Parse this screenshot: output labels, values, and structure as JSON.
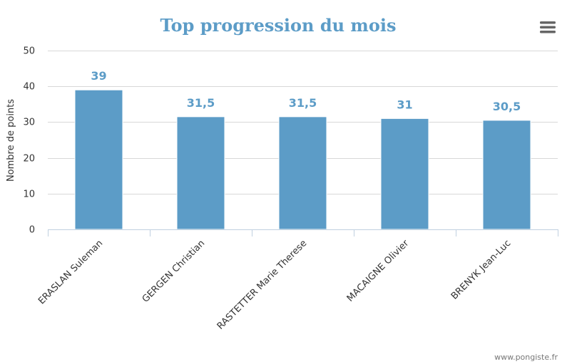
{
  "chart_data": {
    "type": "bar",
    "title": "Top progression du mois",
    "xlabel": "",
    "ylabel": "Nombre de points",
    "categories": [
      "ERASLAN Suleman",
      "GERGEN Christian",
      "RASTETTER Marie Therese",
      "MACAIGNE Olivier",
      "BRENYK Jean-Luc"
    ],
    "values": [
      39,
      31.5,
      31.5,
      31,
      30.5
    ],
    "data_labels": [
      "39",
      "31,5",
      "31,5",
      "31",
      "30,5"
    ],
    "ylim": [
      0,
      50
    ],
    "yticks": [
      0,
      10,
      20,
      30,
      40,
      50
    ],
    "grid": true,
    "bar_color": "#5c9cc7"
  },
  "menu_icon": "hamburger-menu-icon",
  "credits": "www.pongiste.fr"
}
